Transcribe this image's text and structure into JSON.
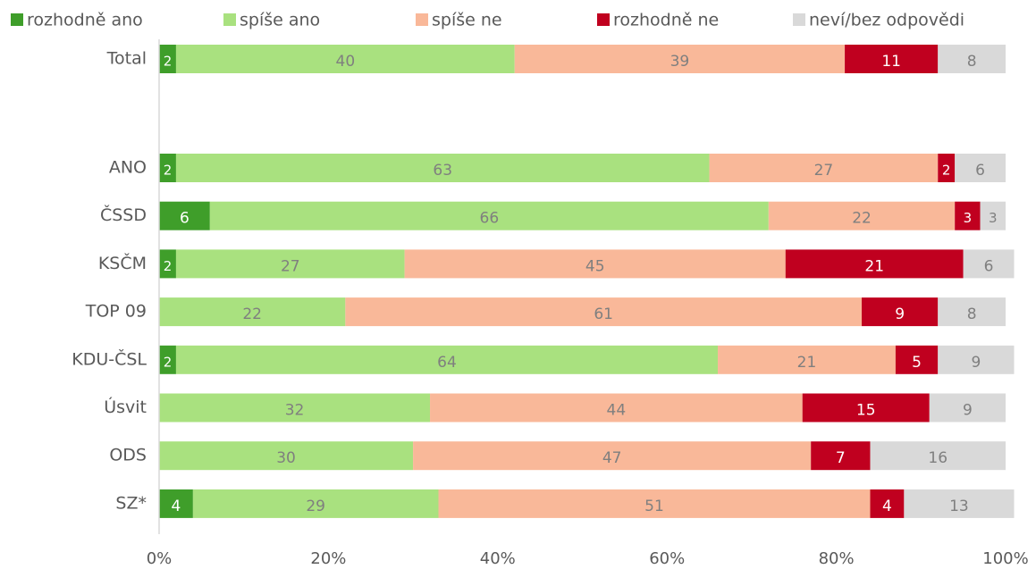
{
  "chart_data": {
    "type": "stacked_barh",
    "categories": [
      "Total",
      null,
      "ANO",
      "ČSSD",
      "KSČM",
      "TOP 09",
      "KDU-ČSL",
      "Úsvit",
      "ODS",
      "SZ*"
    ],
    "series": [
      {
        "name": "rozhodně ano",
        "color": "#3f9e2a",
        "label_color": "#ffffff",
        "values": [
          2,
          null,
          2,
          6,
          2,
          null,
          2,
          null,
          null,
          4
        ]
      },
      {
        "name": "spíše ano",
        "color": "#a9e17f",
        "label_color": "#7f7f7f",
        "values": [
          40,
          null,
          63,
          66,
          27,
          22,
          64,
          32,
          30,
          29
        ]
      },
      {
        "name": "spíše ne",
        "color": "#f9b899",
        "label_color": "#7f7f7f",
        "values": [
          39,
          null,
          27,
          22,
          45,
          61,
          21,
          44,
          47,
          51
        ]
      },
      {
        "name": "rozhodně ne",
        "color": "#c0001f",
        "label_color": "#ffffff",
        "values": [
          11,
          null,
          2,
          3,
          21,
          9,
          5,
          15,
          7,
          4
        ]
      },
      {
        "name": "neví/bez odpovědi",
        "color": "#d9d9d9",
        "label_color": "#7f7f7f",
        "values": [
          8,
          null,
          6,
          3,
          6,
          8,
          9,
          9,
          16,
          13
        ]
      }
    ],
    "xlim": [
      0,
      100
    ],
    "xticks": [
      {
        "value": 0,
        "label": "0%"
      },
      {
        "value": 20,
        "label": "20%"
      },
      {
        "value": 40,
        "label": "40%"
      },
      {
        "value": 60,
        "label": "60%"
      },
      {
        "value": 80,
        "label": "80%"
      },
      {
        "value": 100,
        "label": "100%"
      }
    ],
    "legend": "top"
  }
}
